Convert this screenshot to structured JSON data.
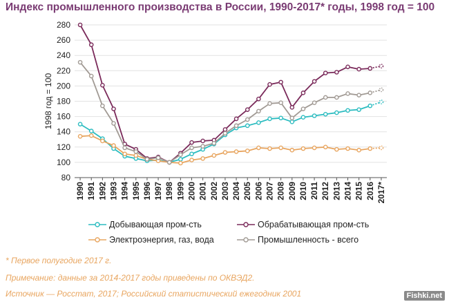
{
  "title": "Индекс промышленного производства в России, 1990-2017* годы, 1998 год = 100",
  "chart_data": {
    "type": "line",
    "ylabel": "1998 год = 100",
    "ylim": [
      80,
      280
    ],
    "yticks": [
      "80",
      "100",
      "120",
      "140",
      "160",
      "180",
      "200",
      "220",
      "240",
      "260",
      "280"
    ],
    "categories": [
      "1990",
      "1991",
      "1992",
      "1993",
      "1994",
      "1995",
      "1996",
      "1997",
      "1998",
      "1999",
      "2000",
      "2001",
      "2002",
      "2003",
      "2004",
      "2005",
      "2006",
      "2007",
      "2008",
      "2009",
      "2010",
      "2011",
      "2012",
      "2013",
      "2014",
      "2015",
      "2016",
      "2017*"
    ],
    "grid": "horizontal",
    "legend_position": "bottom",
    "series": [
      {
        "name": "Добывающая пром-сть",
        "color": "#2bbcc0",
        "values": [
          150,
          141,
          131,
          118,
          108,
          105,
          102,
          103,
          100,
          104,
          111,
          117,
          124,
          136,
          145,
          148,
          152,
          157,
          158,
          153,
          159,
          161,
          163,
          165,
          168,
          169,
          174,
          179
        ]
      },
      {
        "name": "Обрабатывающая пром-сть",
        "color": "#7a2a5a",
        "values": [
          280,
          254,
          201,
          170,
          124,
          117,
          105,
          107,
          100,
          112,
          126,
          128,
          129,
          143,
          157,
          169,
          183,
          202,
          205,
          172,
          191,
          206,
          217,
          218,
          225,
          222,
          223,
          226
        ]
      },
      {
        "name": "Электроэнергия, газ, вода",
        "color": "#e8a55f",
        "values": [
          134,
          135,
          128,
          122,
          111,
          109,
          104,
          102,
          100,
          99,
          103,
          105,
          109,
          113,
          114,
          115,
          119,
          118,
          119,
          116,
          118,
          119,
          120,
          117,
          118,
          116,
          118,
          119
        ]
      },
      {
        "name": "Промышленность - всего",
        "color": "#a19a94",
        "values": [
          231,
          213,
          174,
          151,
          119,
          114,
          104,
          106,
          100,
          110,
          119,
          121,
          125,
          138,
          148,
          156,
          167,
          177,
          178,
          158,
          170,
          178,
          185,
          185,
          190,
          188,
          191,
          195
        ]
      }
    ]
  },
  "notes": {
    "first_half": "* Первое полугодие 2017 г.",
    "okved": "Примечание: данные за 2014-2017 годы приведены по ОКВЭД2.",
    "source": "Источник — Росстат, 2017; Российский статистический ежегодник 2001"
  },
  "watermark": "Fishki.net"
}
